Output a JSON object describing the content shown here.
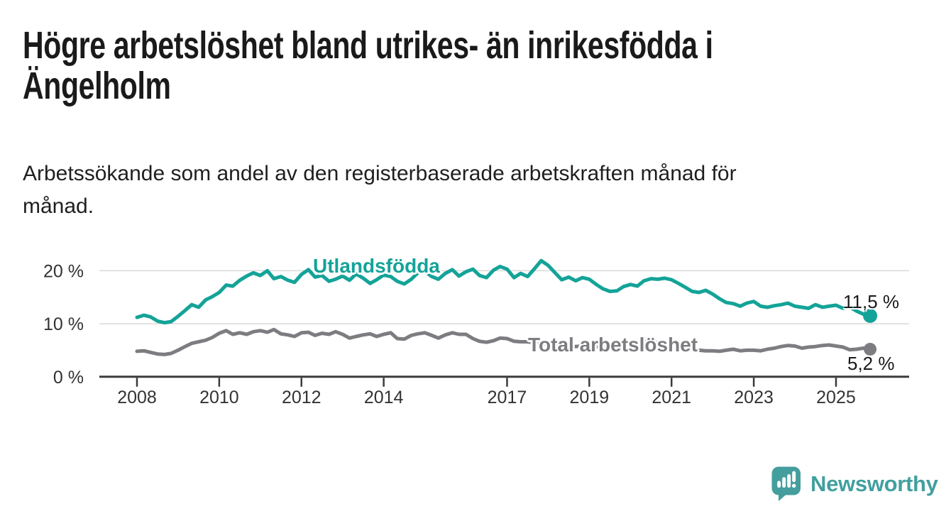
{
  "header": {
    "title_lines": [
      "Högre arbetslöshet bland utrikes- än inrikesfödda i",
      "Ängelholm"
    ],
    "subtitle_lines": [
      "Arbetssökande som andel av den registerbaserade arbetskraften månad för",
      "månad."
    ]
  },
  "chart_data": {
    "type": "line",
    "title": "Högre arbetslöshet bland utrikes- än inrikesfödda i Ängelholm",
    "subtitle": "Arbetssökande som andel av den registerbaserade arbetskraften månad för månad.",
    "unit": "%",
    "grid": "horizontal",
    "legend_position": "inline-labels",
    "xlim": [
      2007.8,
      2026.8
    ],
    "ylim": [
      0,
      24
    ],
    "x_tick_years": [
      2008,
      2010,
      2012,
      2014,
      2017,
      2019,
      2021,
      2023,
      2025
    ],
    "x_tick_labels": [
      "2008",
      "2010",
      "2012",
      "2014",
      "2017",
      "2019",
      "2021",
      "2023",
      "2025"
    ],
    "y_ticks": [
      {
        "value": 0,
        "label": "0 %"
      },
      {
        "value": 10,
        "label": "10 %"
      },
      {
        "value": 20,
        "label": "20 %"
      }
    ],
    "series": [
      {
        "name": "Utlandsfödda",
        "color": "#14a398",
        "end_label": "11,5 %",
        "end_value": 11.5,
        "points": [
          [
            2008,
            11.2
          ],
          [
            2008.17,
            11.6
          ],
          [
            2008.33,
            11.3
          ],
          [
            2008.5,
            10.5
          ],
          [
            2008.67,
            10.2
          ],
          [
            2008.83,
            10.4
          ],
          [
            2009,
            11.4
          ],
          [
            2009.17,
            12.5
          ],
          [
            2009.33,
            13.6
          ],
          [
            2009.5,
            13.1
          ],
          [
            2009.67,
            14.5
          ],
          [
            2009.83,
            15.1
          ],
          [
            2010,
            15.9
          ],
          [
            2010.17,
            17.3
          ],
          [
            2010.33,
            17.1
          ],
          [
            2010.5,
            18.2
          ],
          [
            2010.67,
            19.0
          ],
          [
            2010.83,
            19.6
          ],
          [
            2011,
            19.1
          ],
          [
            2011.17,
            20.0
          ],
          [
            2011.33,
            18.5
          ],
          [
            2011.5,
            18.9
          ],
          [
            2011.67,
            18.2
          ],
          [
            2011.83,
            17.8
          ],
          [
            2012,
            19.3
          ],
          [
            2012.17,
            20.2
          ],
          [
            2012.33,
            18.8
          ],
          [
            2012.5,
            19.1
          ],
          [
            2012.67,
            18.0
          ],
          [
            2012.83,
            18.4
          ],
          [
            2013,
            19.0
          ],
          [
            2013.17,
            18.2
          ],
          [
            2013.33,
            19.4
          ],
          [
            2013.5,
            18.6
          ],
          [
            2013.67,
            17.6
          ],
          [
            2013.83,
            18.3
          ],
          [
            2014,
            19.2
          ],
          [
            2014.17,
            18.9
          ],
          [
            2014.33,
            18.0
          ],
          [
            2014.5,
            17.5
          ],
          [
            2014.67,
            18.4
          ],
          [
            2014.83,
            19.6
          ],
          [
            2015,
            19.9
          ],
          [
            2015.17,
            18.9
          ],
          [
            2015.33,
            18.4
          ],
          [
            2015.5,
            19.5
          ],
          [
            2015.67,
            20.2
          ],
          [
            2015.83,
            19.0
          ],
          [
            2016,
            19.8
          ],
          [
            2016.17,
            20.3
          ],
          [
            2016.33,
            19.1
          ],
          [
            2016.5,
            18.7
          ],
          [
            2016.67,
            20.1
          ],
          [
            2016.83,
            20.8
          ],
          [
            2017,
            20.3
          ],
          [
            2017.17,
            18.7
          ],
          [
            2017.33,
            19.5
          ],
          [
            2017.5,
            18.9
          ],
          [
            2017.67,
            20.4
          ],
          [
            2017.83,
            21.9
          ],
          [
            2018,
            21.0
          ],
          [
            2018.17,
            19.6
          ],
          [
            2018.33,
            18.3
          ],
          [
            2018.5,
            18.8
          ],
          [
            2018.67,
            18.1
          ],
          [
            2018.83,
            18.7
          ],
          [
            2019,
            18.4
          ],
          [
            2019.17,
            17.4
          ],
          [
            2019.33,
            16.6
          ],
          [
            2019.5,
            16.1
          ],
          [
            2019.67,
            16.2
          ],
          [
            2019.83,
            17.0
          ],
          [
            2020,
            17.4
          ],
          [
            2020.17,
            17.1
          ],
          [
            2020.33,
            18.1
          ],
          [
            2020.5,
            18.5
          ],
          [
            2020.67,
            18.4
          ],
          [
            2020.83,
            18.6
          ],
          [
            2021,
            18.3
          ],
          [
            2021.17,
            17.6
          ],
          [
            2021.33,
            16.9
          ],
          [
            2021.5,
            16.1
          ],
          [
            2021.67,
            15.9
          ],
          [
            2021.83,
            16.3
          ],
          [
            2022,
            15.6
          ],
          [
            2022.17,
            14.7
          ],
          [
            2022.33,
            14.0
          ],
          [
            2022.5,
            13.8
          ],
          [
            2022.67,
            13.3
          ],
          [
            2022.83,
            13.9
          ],
          [
            2023,
            14.2
          ],
          [
            2023.17,
            13.3
          ],
          [
            2023.33,
            13.1
          ],
          [
            2023.5,
            13.4
          ],
          [
            2023.67,
            13.6
          ],
          [
            2023.83,
            13.9
          ],
          [
            2024,
            13.3
          ],
          [
            2024.17,
            13.1
          ],
          [
            2024.33,
            12.9
          ],
          [
            2024.5,
            13.6
          ],
          [
            2024.67,
            13.1
          ],
          [
            2024.83,
            13.3
          ],
          [
            2025,
            13.5
          ],
          [
            2025.17,
            12.9
          ],
          [
            2025.33,
            13.2
          ],
          [
            2025.5,
            12.4
          ],
          [
            2025.67,
            11.8
          ],
          [
            2025.83,
            11.5
          ]
        ]
      },
      {
        "name": "Total arbetslöshet",
        "color": "#7d7d81",
        "end_label": "5,2 %",
        "end_value": 5.2,
        "points": [
          [
            2008,
            4.8
          ],
          [
            2008.17,
            4.9
          ],
          [
            2008.33,
            4.6
          ],
          [
            2008.5,
            4.3
          ],
          [
            2008.67,
            4.2
          ],
          [
            2008.83,
            4.4
          ],
          [
            2009,
            5.0
          ],
          [
            2009.17,
            5.7
          ],
          [
            2009.33,
            6.3
          ],
          [
            2009.5,
            6.6
          ],
          [
            2009.67,
            6.9
          ],
          [
            2009.83,
            7.4
          ],
          [
            2010,
            8.2
          ],
          [
            2010.17,
            8.7
          ],
          [
            2010.33,
            8.0
          ],
          [
            2010.5,
            8.3
          ],
          [
            2010.67,
            8.0
          ],
          [
            2010.83,
            8.5
          ],
          [
            2011,
            8.7
          ],
          [
            2011.17,
            8.4
          ],
          [
            2011.33,
            8.9
          ],
          [
            2011.5,
            8.1
          ],
          [
            2011.67,
            7.9
          ],
          [
            2011.83,
            7.6
          ],
          [
            2012,
            8.3
          ],
          [
            2012.17,
            8.4
          ],
          [
            2012.33,
            7.8
          ],
          [
            2012.5,
            8.2
          ],
          [
            2012.67,
            8.0
          ],
          [
            2012.83,
            8.5
          ],
          [
            2013,
            8.0
          ],
          [
            2013.17,
            7.3
          ],
          [
            2013.33,
            7.6
          ],
          [
            2013.5,
            7.9
          ],
          [
            2013.67,
            8.1
          ],
          [
            2013.83,
            7.6
          ],
          [
            2014,
            8.0
          ],
          [
            2014.17,
            8.3
          ],
          [
            2014.33,
            7.2
          ],
          [
            2014.5,
            7.1
          ],
          [
            2014.67,
            7.8
          ],
          [
            2014.83,
            8.1
          ],
          [
            2015,
            8.3
          ],
          [
            2015.17,
            7.8
          ],
          [
            2015.33,
            7.3
          ],
          [
            2015.5,
            7.9
          ],
          [
            2015.67,
            8.3
          ],
          [
            2015.83,
            8.0
          ],
          [
            2016,
            8.0
          ],
          [
            2016.17,
            7.2
          ],
          [
            2016.33,
            6.7
          ],
          [
            2016.5,
            6.5
          ],
          [
            2016.67,
            6.8
          ],
          [
            2016.83,
            7.3
          ],
          [
            2017,
            7.2
          ],
          [
            2017.17,
            6.7
          ],
          [
            2017.33,
            6.6
          ],
          [
            2017.5,
            6.6
          ],
          [
            2017.67,
            6.4
          ],
          [
            2017.83,
            6.3
          ],
          [
            2018,
            6.1
          ],
          [
            2018.17,
            6.0
          ],
          [
            2018.33,
            5.9
          ],
          [
            2018.5,
            5.8
          ],
          [
            2018.67,
            5.7
          ],
          [
            2018.83,
            5.8
          ],
          [
            2019,
            5.8
          ],
          [
            2019.17,
            5.7
          ],
          [
            2019.33,
            5.6
          ],
          [
            2019.5,
            5.7
          ],
          [
            2019.67,
            5.8
          ],
          [
            2019.83,
            6.0
          ],
          [
            2020,
            6.2
          ],
          [
            2020.17,
            6.5
          ],
          [
            2020.33,
            6.7
          ],
          [
            2020.5,
            6.6
          ],
          [
            2020.67,
            6.4
          ],
          [
            2020.83,
            6.2
          ],
          [
            2021,
            6.0
          ],
          [
            2021.17,
            5.7
          ],
          [
            2021.33,
            5.4
          ],
          [
            2021.5,
            5.1
          ],
          [
            2021.67,
            5.0
          ],
          [
            2021.83,
            4.9
          ],
          [
            2022,
            4.9
          ],
          [
            2022.17,
            4.8
          ],
          [
            2022.33,
            5.0
          ],
          [
            2022.5,
            5.2
          ],
          [
            2022.67,
            4.9
          ],
          [
            2022.83,
            5.0
          ],
          [
            2023,
            5.0
          ],
          [
            2023.17,
            4.9
          ],
          [
            2023.33,
            5.2
          ],
          [
            2023.5,
            5.4
          ],
          [
            2023.67,
            5.7
          ],
          [
            2023.83,
            5.9
          ],
          [
            2024,
            5.8
          ],
          [
            2024.17,
            5.4
          ],
          [
            2024.33,
            5.6
          ],
          [
            2024.5,
            5.7
          ],
          [
            2024.67,
            5.9
          ],
          [
            2024.83,
            6.0
          ],
          [
            2025,
            5.8
          ],
          [
            2025.17,
            5.6
          ],
          [
            2025.33,
            5.1
          ],
          [
            2025.5,
            5.2
          ],
          [
            2025.67,
            5.4
          ],
          [
            2025.83,
            5.2
          ]
        ]
      }
    ],
    "colors": {
      "axis": "#3b3b3b",
      "gridline": "#d9d9d9",
      "tick_text": "#333333",
      "end_label_text": "#1a1a1a",
      "brand_teal": "#429f9f"
    }
  },
  "branding": {
    "logo_text": "Newsworthy",
    "logo_icon": "speech-bubble-bar-chart-exclamation"
  }
}
